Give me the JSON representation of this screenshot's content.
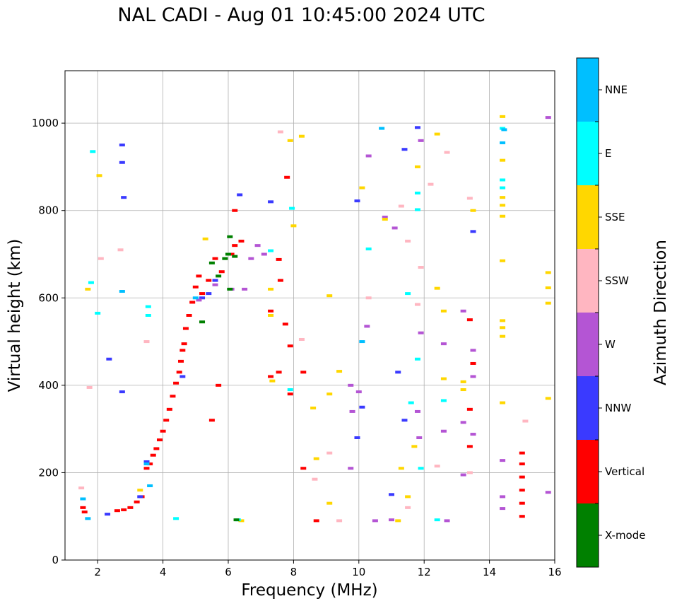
{
  "chart_data": {
    "type": "scatter",
    "title": "NAL CADI - Aug 01 10:45:00 2024 UTC",
    "xlabel": "Frequency (MHz)",
    "ylabel": "Virtual height (km)",
    "xlim": [
      1,
      16
    ],
    "ylim": [
      0,
      1120
    ],
    "xticks": [
      2,
      4,
      6,
      8,
      10,
      12,
      14,
      16
    ],
    "yticks": [
      0,
      200,
      400,
      600,
      800,
      1000
    ],
    "grid": true,
    "colorbar": {
      "label": "Azimuth Direction",
      "categories": [
        {
          "name": "X-mode",
          "color": "#008000"
        },
        {
          "name": "Vertical",
          "color": "#ff0000"
        },
        {
          "name": "NNW",
          "color": "#3a3aff"
        },
        {
          "name": "W",
          "color": "#b455d4"
        },
        {
          "name": "SSW",
          "color": "#ffb6c1"
        },
        {
          "name": "SSE",
          "color": "#ffd700"
        },
        {
          "name": "E",
          "color": "#00ffff"
        },
        {
          "name": "NNE",
          "color": "#00bfff"
        }
      ]
    },
    "series": [
      {
        "name": "Vertical",
        "points": [
          [
            1.55,
            120
          ],
          [
            1.6,
            110
          ],
          [
            2.6,
            113
          ],
          [
            2.8,
            115
          ],
          [
            3.0,
            120
          ],
          [
            3.2,
            133
          ],
          [
            3.35,
            145
          ],
          [
            3.5,
            210
          ],
          [
            3.6,
            220
          ],
          [
            3.7,
            240
          ],
          [
            3.8,
            255
          ],
          [
            3.9,
            275
          ],
          [
            4.0,
            295
          ],
          [
            4.1,
            320
          ],
          [
            4.2,
            345
          ],
          [
            4.3,
            375
          ],
          [
            4.4,
            405
          ],
          [
            4.5,
            430
          ],
          [
            4.55,
            455
          ],
          [
            4.6,
            480
          ],
          [
            4.65,
            495
          ],
          [
            4.7,
            530
          ],
          [
            4.8,
            560
          ],
          [
            4.9,
            590
          ],
          [
            5.0,
            625
          ],
          [
            5.1,
            650
          ],
          [
            5.2,
            610
          ],
          [
            5.4,
            640
          ],
          [
            5.6,
            690
          ],
          [
            5.8,
            660
          ],
          [
            6.1,
            700
          ],
          [
            6.2,
            720
          ],
          [
            6.4,
            730
          ],
          [
            7.3,
            570
          ],
          [
            7.6,
            640
          ],
          [
            7.75,
            540
          ],
          [
            7.9,
            490
          ],
          [
            7.9,
            380
          ],
          [
            8.3,
            430
          ],
          [
            8.3,
            210
          ],
          [
            8.7,
            90
          ],
          [
            13.4,
            260
          ],
          [
            13.4,
            345
          ],
          [
            13.5,
            450
          ],
          [
            13.4,
            550
          ],
          [
            15.0,
            100
          ],
          [
            15.0,
            130
          ],
          [
            15.0,
            160
          ],
          [
            15.0,
            190
          ],
          [
            15.0,
            220
          ],
          [
            15.0,
            245
          ],
          [
            7.55,
            430
          ],
          [
            7.3,
            420
          ],
          [
            7.8,
            876
          ],
          [
            7.55,
            688
          ],
          [
            6.2,
            800
          ],
          [
            5.7,
            400
          ],
          [
            5.5,
            320
          ]
        ]
      },
      {
        "name": "NNW",
        "points": [
          [
            2.3,
            105
          ],
          [
            3.3,
            145
          ],
          [
            3.5,
            225
          ],
          [
            4.6,
            420
          ],
          [
            5.2,
            600
          ],
          [
            5.4,
            610
          ],
          [
            5.6,
            640
          ],
          [
            2.75,
            950
          ],
          [
            2.75,
            910
          ],
          [
            2.8,
            830
          ],
          [
            6.35,
            836
          ],
          [
            7.3,
            820
          ],
          [
            9.95,
            822
          ],
          [
            9.95,
            280
          ],
          [
            11.2,
            430
          ],
          [
            11.4,
            320
          ],
          [
            11.4,
            940
          ],
          [
            11.8,
            990
          ],
          [
            13.5,
            752
          ],
          [
            11.0,
            150
          ],
          [
            2.75,
            385
          ],
          [
            2.35,
            460
          ],
          [
            10.1,
            350
          ]
        ]
      },
      {
        "name": "W",
        "points": [
          [
            5.1,
            595
          ],
          [
            5.6,
            630
          ],
          [
            6.1,
            620
          ],
          [
            6.5,
            620
          ],
          [
            6.7,
            690
          ],
          [
            6.9,
            720
          ],
          [
            7.1,
            700
          ],
          [
            9.75,
            400
          ],
          [
            9.75,
            210
          ],
          [
            10.0,
            385
          ],
          [
            10.25,
            535
          ],
          [
            10.3,
            925
          ],
          [
            10.8,
            785
          ],
          [
            11.1,
            760
          ],
          [
            11.8,
            340
          ],
          [
            11.85,
            280
          ],
          [
            11.9,
            520
          ],
          [
            11.9,
            960
          ],
          [
            12.6,
            495
          ],
          [
            12.6,
            295
          ],
          [
            13.2,
            195
          ],
          [
            13.2,
            315
          ],
          [
            13.2,
            570
          ],
          [
            13.5,
            480
          ],
          [
            13.5,
            420
          ],
          [
            13.5,
            288
          ],
          [
            14.4,
            228
          ],
          [
            14.4,
            145
          ],
          [
            14.4,
            118
          ],
          [
            15.8,
            1013
          ],
          [
            15.8,
            155
          ],
          [
            12.7,
            90
          ],
          [
            10.5,
            90
          ],
          [
            11.0,
            92
          ],
          [
            9.8,
            340
          ]
        ]
      },
      {
        "name": "SSW",
        "points": [
          [
            1.5,
            165
          ],
          [
            1.75,
            395
          ],
          [
            2.1,
            690
          ],
          [
            2.7,
            710
          ],
          [
            3.5,
            500
          ],
          [
            7.6,
            980
          ],
          [
            8.25,
            505
          ],
          [
            8.65,
            185
          ],
          [
            9.1,
            245
          ],
          [
            9.4,
            90
          ],
          [
            11.3,
            810
          ],
          [
            11.5,
            120
          ],
          [
            11.8,
            585
          ],
          [
            12.2,
            860
          ],
          [
            12.4,
            215
          ],
          [
            12.7,
            933
          ],
          [
            13.4,
            828
          ],
          [
            13.4,
            200
          ],
          [
            15.1,
            318
          ],
          [
            11.5,
            730
          ],
          [
            10.3,
            600
          ],
          [
            11.9,
            670
          ]
        ]
      },
      {
        "name": "SSE",
        "points": [
          [
            1.7,
            620
          ],
          [
            2.05,
            880
          ],
          [
            3.3,
            160
          ],
          [
            5.3,
            735
          ],
          [
            7.3,
            620
          ],
          [
            7.3,
            560
          ],
          [
            7.35,
            410
          ],
          [
            7.9,
            960
          ],
          [
            8.0,
            765
          ],
          [
            8.25,
            970
          ],
          [
            8.6,
            348
          ],
          [
            8.7,
            232
          ],
          [
            9.1,
            605
          ],
          [
            9.1,
            380
          ],
          [
            9.1,
            130
          ],
          [
            9.4,
            432
          ],
          [
            10.1,
            852
          ],
          [
            10.8,
            780
          ],
          [
            11.3,
            210
          ],
          [
            11.5,
            145
          ],
          [
            11.7,
            260
          ],
          [
            11.8,
            900
          ],
          [
            12.4,
            975
          ],
          [
            12.4,
            622
          ],
          [
            12.6,
            570
          ],
          [
            12.6,
            415
          ],
          [
            13.2,
            408
          ],
          [
            13.2,
            390
          ],
          [
            13.5,
            800
          ],
          [
            14.4,
            1015
          ],
          [
            14.4,
            915
          ],
          [
            14.4,
            830
          ],
          [
            14.4,
            812
          ],
          [
            14.4,
            787
          ],
          [
            14.4,
            685
          ],
          [
            14.4,
            548
          ],
          [
            14.4,
            532
          ],
          [
            14.4,
            512
          ],
          [
            14.4,
            360
          ],
          [
            15.8,
            658
          ],
          [
            15.8,
            623
          ],
          [
            15.8,
            588
          ],
          [
            15.8,
            370
          ],
          [
            6.4,
            90
          ],
          [
            11.2,
            90
          ]
        ]
      },
      {
        "name": "E",
        "points": [
          [
            1.8,
            635
          ],
          [
            3.55,
            580
          ],
          [
            3.55,
            560
          ],
          [
            4.4,
            95
          ],
          [
            7.3,
            708
          ],
          [
            7.9,
            390
          ],
          [
            7.95,
            805
          ],
          [
            10.3,
            712
          ],
          [
            11.5,
            610
          ],
          [
            11.6,
            360
          ],
          [
            11.8,
            840
          ],
          [
            11.8,
            802
          ],
          [
            11.8,
            460
          ],
          [
            11.9,
            210
          ],
          [
            12.4,
            92
          ],
          [
            12.6,
            365
          ],
          [
            14.4,
            988
          ],
          [
            14.4,
            870
          ],
          [
            14.4,
            852
          ],
          [
            2.0,
            565
          ],
          [
            1.85,
            935
          ],
          [
            6.3,
            92
          ]
        ]
      },
      {
        "name": "NNE",
        "points": [
          [
            1.55,
            140
          ],
          [
            1.7,
            95
          ],
          [
            2.75,
            615
          ],
          [
            3.5,
            220
          ],
          [
            5.0,
            600
          ],
          [
            10.1,
            500
          ],
          [
            10.7,
            988
          ],
          [
            14.4,
            955
          ],
          [
            14.45,
            985
          ],
          [
            3.6,
            170
          ]
        ]
      },
      {
        "name": "X-mode",
        "points": [
          [
            5.5,
            680
          ],
          [
            5.7,
            650
          ],
          [
            5.9,
            690
          ],
          [
            6.0,
            700
          ],
          [
            6.05,
            740
          ],
          [
            6.05,
            620
          ],
          [
            6.2,
            695
          ],
          [
            5.2,
            545
          ],
          [
            6.25,
            92
          ]
        ]
      }
    ]
  }
}
